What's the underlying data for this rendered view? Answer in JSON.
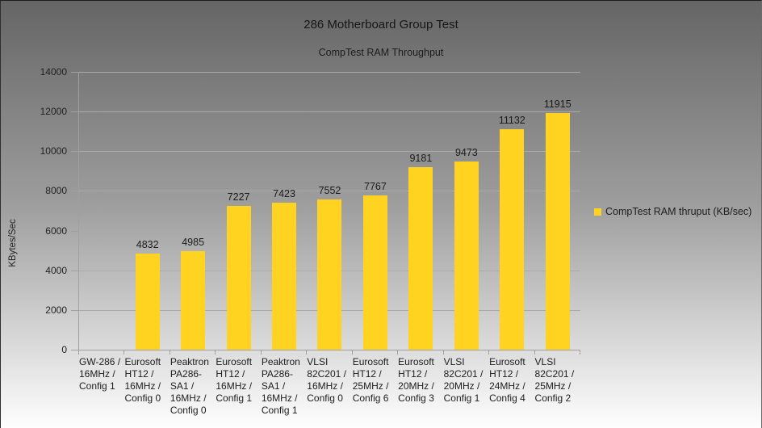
{
  "chart_data": {
    "type": "bar",
    "title": "286 Motherboard Group Test",
    "subtitle": "CompTest RAM Throughput",
    "ylabel": "KBytes/Sec",
    "xlabel": "",
    "ylim": [
      0,
      14000
    ],
    "ytick_interval": 2000,
    "ytick_labels": [
      "0",
      "2000",
      "4000",
      "6000",
      "8000",
      "10000",
      "12000",
      "14000"
    ],
    "grid": true,
    "legend": {
      "position": "right",
      "label": "CompTest RAM thruput (KB/sec)",
      "swatch_color": "#ffd320"
    },
    "categories": [
      "GW-286 / 16MHz / Config 1",
      "Eurosoft HT12 / 16MHz / Config 0",
      "Peaktron PA286-SA1 / 16MHz / Config 0",
      "Eurosoft HT12 / 16MHz / Config 1",
      "Peaktron PA286-SA1 / 16MHz / Config 1",
      "VLSI 82C201 / 16MHz / Config 0",
      "Eurosoft HT12 / 25MHz / Config 6",
      "Eurosoft HT12 / 20MHz / Config 3",
      "VLSI 82C201 / 20MHz / Config 1",
      "Eurosoft HT12 / 24MHz / Config 4",
      "VLSI 82C201 / 25MHz / Config 2"
    ],
    "values": [
      null,
      4832,
      4985,
      7227,
      7423,
      7552,
      7767,
      9181,
      9473,
      11132,
      11915
    ],
    "bar_color": "#ffd320",
    "value_labels_shown": true
  },
  "colors": {
    "background_top": "#656565",
    "background_bottom": "#fefefe",
    "gridline": "#a6a6a6",
    "axis": "#a0a0a0",
    "text": "#1e1e1e",
    "bar": "#ffd320"
  }
}
